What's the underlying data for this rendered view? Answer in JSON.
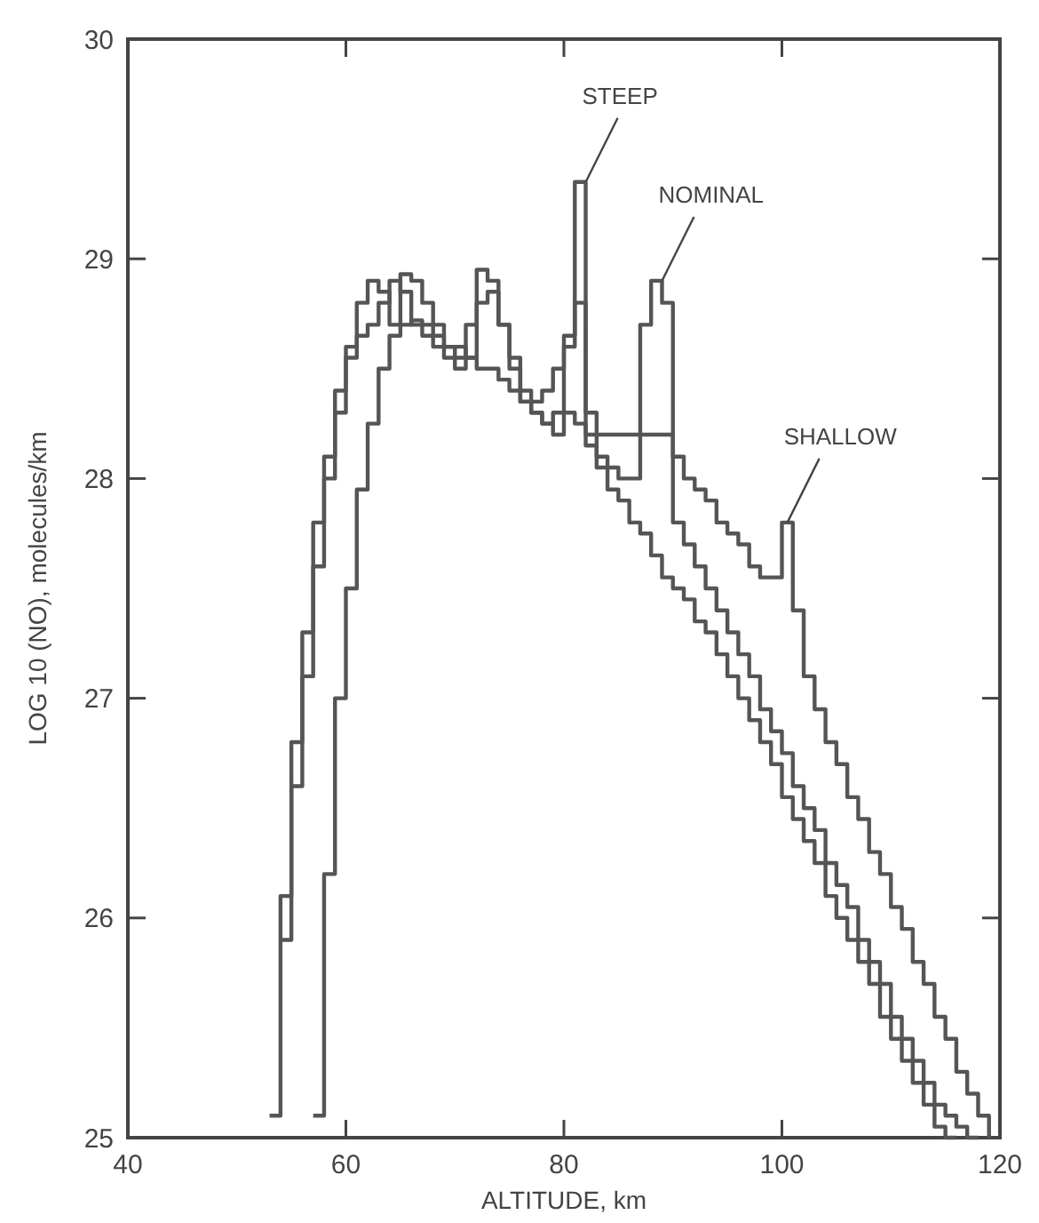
{
  "chart_data": {
    "type": "step",
    "xlabel": "ALTITUDE, km",
    "ylabel": "LOG 10 (NO), molecules/km",
    "xlim": [
      40,
      120
    ],
    "xticks": [
      40,
      60,
      80,
      100,
      120
    ],
    "ylim": [
      25,
      30
    ],
    "yticks": [
      25,
      26,
      27,
      28,
      29,
      30
    ],
    "grid": false,
    "marker": "none",
    "line_style": "solid",
    "series": [
      {
        "color": "#555555",
        "x": [
          53,
          54,
          55,
          56,
          57,
          58,
          59,
          60,
          61,
          62,
          63,
          64,
          65,
          66,
          67,
          68,
          69,
          70,
          71,
          72,
          73,
          74,
          75,
          76,
          77,
          78,
          79,
          80,
          81,
          82,
          83,
          84,
          85,
          86,
          87,
          88,
          89,
          90,
          91,
          92,
          93,
          94,
          95,
          96,
          97,
          98,
          99,
          100,
          101,
          102,
          103,
          104,
          105,
          106,
          107,
          108,
          109,
          110,
          111,
          112,
          113,
          114,
          115,
          116
        ],
        "values": [
          25.1,
          26.1,
          26.8,
          27.3,
          27.8,
          28.1,
          28.4,
          28.6,
          28.8,
          28.9,
          28.85,
          28.7,
          28.93,
          28.9,
          28.8,
          28.7,
          28.6,
          28.55,
          28.7,
          28.95,
          28.9,
          28.7,
          28.55,
          28.4,
          28.35,
          28.4,
          28.5,
          28.65,
          29.35,
          28.15,
          28.05,
          27.95,
          27.9,
          27.8,
          27.75,
          27.65,
          27.55,
          27.5,
          27.45,
          27.35,
          27.3,
          27.2,
          27.1,
          27.0,
          26.9,
          26.8,
          26.7,
          26.55,
          26.45,
          26.35,
          26.25,
          26.1,
          26.0,
          25.9,
          25.8,
          25.7,
          25.55,
          25.45,
          25.35,
          25.25,
          25.15,
          25.05,
          25.0,
          25.0
        ]
      },
      {
        "color": "#555555",
        "x": [
          54,
          55,
          56,
          57,
          58,
          59,
          60,
          61,
          62,
          63,
          64,
          65,
          66,
          67,
          68,
          69,
          70,
          71,
          72,
          73,
          74,
          75,
          76,
          77,
          78,
          79,
          80,
          81,
          82,
          83,
          84,
          85,
          86,
          87,
          88,
          89,
          90,
          91,
          92,
          93,
          94,
          95,
          96,
          97,
          98,
          99,
          100,
          101,
          102,
          103,
          104,
          105,
          106,
          107,
          108,
          109,
          110,
          111,
          112,
          113,
          114,
          115,
          116,
          117,
          118
        ],
        "values": [
          25.9,
          26.6,
          27.1,
          27.6,
          28.0,
          28.3,
          28.55,
          28.65,
          28.7,
          28.8,
          28.9,
          28.85,
          28.7,
          28.65,
          28.6,
          28.55,
          28.5,
          28.55,
          28.8,
          28.85,
          28.7,
          28.5,
          28.35,
          28.3,
          28.25,
          28.3,
          28.6,
          28.8,
          28.3,
          28.1,
          28.05,
          28.0,
          28.0,
          28.7,
          28.9,
          28.8,
          27.8,
          27.7,
          27.6,
          27.5,
          27.4,
          27.3,
          27.2,
          27.1,
          26.95,
          26.85,
          26.75,
          26.6,
          26.5,
          26.4,
          26.25,
          26.15,
          26.05,
          25.9,
          25.8,
          25.7,
          25.55,
          25.45,
          25.35,
          25.25,
          25.15,
          25.1,
          25.05,
          25.0,
          25.0
        ]
      },
      {
        "color": "#555555",
        "x": [
          57,
          58,
          59,
          60,
          61,
          62,
          63,
          64,
          65,
          66,
          67,
          68,
          69,
          70,
          71,
          72,
          73,
          74,
          75,
          76,
          77,
          78,
          79,
          80,
          81,
          82,
          83,
          84,
          85,
          86,
          87,
          88,
          89,
          90,
          91,
          92,
          93,
          94,
          95,
          96,
          97,
          98,
          99,
          100,
          101,
          102,
          103,
          104,
          105,
          106,
          107,
          108,
          109,
          110,
          111,
          112,
          113,
          114,
          115,
          116,
          117,
          118,
          119
        ],
        "values": [
          25.1,
          26.2,
          27.0,
          27.5,
          27.95,
          28.25,
          28.5,
          28.65,
          28.7,
          28.72,
          28.7,
          28.65,
          28.6,
          28.6,
          28.55,
          28.5,
          28.5,
          28.45,
          28.4,
          28.35,
          28.3,
          28.25,
          28.2,
          28.3,
          28.25,
          28.2,
          28.2,
          28.2,
          28.2,
          28.2,
          28.2,
          28.2,
          28.2,
          28.1,
          28.0,
          27.95,
          27.9,
          27.8,
          27.75,
          27.7,
          27.6,
          27.55,
          27.55,
          27.8,
          27.4,
          27.1,
          26.95,
          26.8,
          26.7,
          26.55,
          26.45,
          26.3,
          26.2,
          26.05,
          25.95,
          25.8,
          25.7,
          25.55,
          25.45,
          25.3,
          25.2,
          25.1,
          25.0
        ]
      }
    ],
    "annotations": [
      {
        "text": "STEEP",
        "x": 82,
        "y": 29.35
      },
      {
        "text": "NOMINAL",
        "x": 89,
        "y": 28.9
      },
      {
        "text": "SHALLOW",
        "x": 100.5,
        "y": 27.8
      }
    ]
  }
}
